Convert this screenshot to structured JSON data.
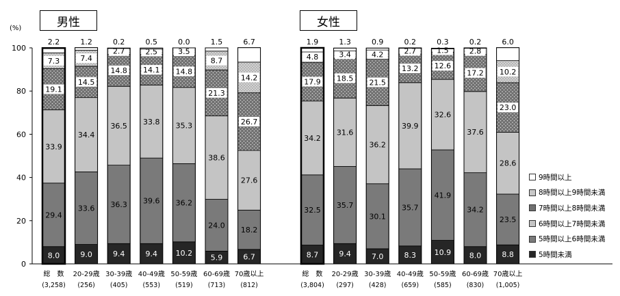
{
  "titles": {
    "male": "男性",
    "female": "女性"
  },
  "unit_label": "(%)",
  "legend": [
    {
      "label": "9時間以上",
      "color": "#ffffff"
    },
    {
      "label": "8時間以上9時間未満",
      "color": "#c8c8c8"
    },
    {
      "label": "7時間以上8時間未満",
      "color": "#707070"
    },
    {
      "label": "6時間以上7時間未満",
      "color": "#c4c4c4"
    },
    {
      "label": "5時間以上6時間未満",
      "color": "#7a7a7a"
    },
    {
      "label": "5時間未満",
      "color": "#262626"
    }
  ],
  "chart_data": {
    "type": "bar",
    "stacked": true,
    "ylabel": "(%)",
    "ylim": [
      0,
      100
    ],
    "yticks": [
      0,
      20,
      40,
      60,
      80,
      100
    ],
    "series": [
      {
        "name": "5時間未満"
      },
      {
        "name": "5時間以上6時間未満"
      },
      {
        "name": "6時間以上7時間未満"
      },
      {
        "name": "7時間以上8時間未満"
      },
      {
        "name": "8時間以上9時間未満"
      },
      {
        "name": "9時間以上"
      }
    ],
    "groups": [
      {
        "name": "男性",
        "categories": [
          {
            "label": "総　数",
            "n": "(3,258)",
            "values": [
              8.0,
              29.4,
              33.9,
              19.1,
              7.3,
              2.2
            ],
            "bold": true
          },
          {
            "label": "20-29歳",
            "n": "(256)",
            "values": [
              9.0,
              33.6,
              34.4,
              14.5,
              7.4,
              1.2
            ]
          },
          {
            "label": "30-39歳",
            "n": "(405)",
            "values": [
              9.4,
              36.3,
              36.5,
              14.8,
              2.7,
              0.2
            ]
          },
          {
            "label": "40-49歳",
            "n": "(553)",
            "values": [
              9.4,
              39.6,
              33.8,
              14.1,
              2.5,
              0.5
            ]
          },
          {
            "label": "50-59歳",
            "n": "(519)",
            "values": [
              10.2,
              36.2,
              35.3,
              14.8,
              3.5,
              0.0
            ]
          },
          {
            "label": "60-69歳",
            "n": "(713)",
            "values": [
              5.9,
              24.0,
              38.6,
              21.3,
              8.7,
              1.5
            ]
          },
          {
            "label": "70歳以上",
            "n": "(812)",
            "values": [
              6.7,
              18.2,
              27.6,
              26.7,
              14.2,
              6.7
            ]
          }
        ]
      },
      {
        "name": "女性",
        "categories": [
          {
            "label": "総　数",
            "n": "(3,804)",
            "values": [
              8.7,
              32.5,
              34.2,
              17.9,
              4.8,
              1.9
            ],
            "bold": true
          },
          {
            "label": "20-29歳",
            "n": "(297)",
            "values": [
              9.4,
              35.7,
              31.6,
              18.5,
              3.4,
              1.3
            ]
          },
          {
            "label": "30-39歳",
            "n": "(428)",
            "values": [
              7.0,
              30.1,
              36.2,
              21.5,
              4.2,
              0.9
            ]
          },
          {
            "label": "40-49歳",
            "n": "(659)",
            "values": [
              8.3,
              35.7,
              39.9,
              13.2,
              2.7,
              0.2
            ]
          },
          {
            "label": "50-59歳",
            "n": "(585)",
            "values": [
              10.9,
              41.9,
              32.6,
              12.6,
              1.5,
              0.3
            ]
          },
          {
            "label": "60-69歳",
            "n": "(830)",
            "values": [
              8.0,
              34.2,
              37.6,
              17.2,
              2.8,
              0.2
            ]
          },
          {
            "label": "70歳以上",
            "n": "(1,005)",
            "values": [
              8.8,
              23.5,
              28.6,
              23.0,
              10.2,
              6.0
            ]
          }
        ]
      }
    ]
  }
}
